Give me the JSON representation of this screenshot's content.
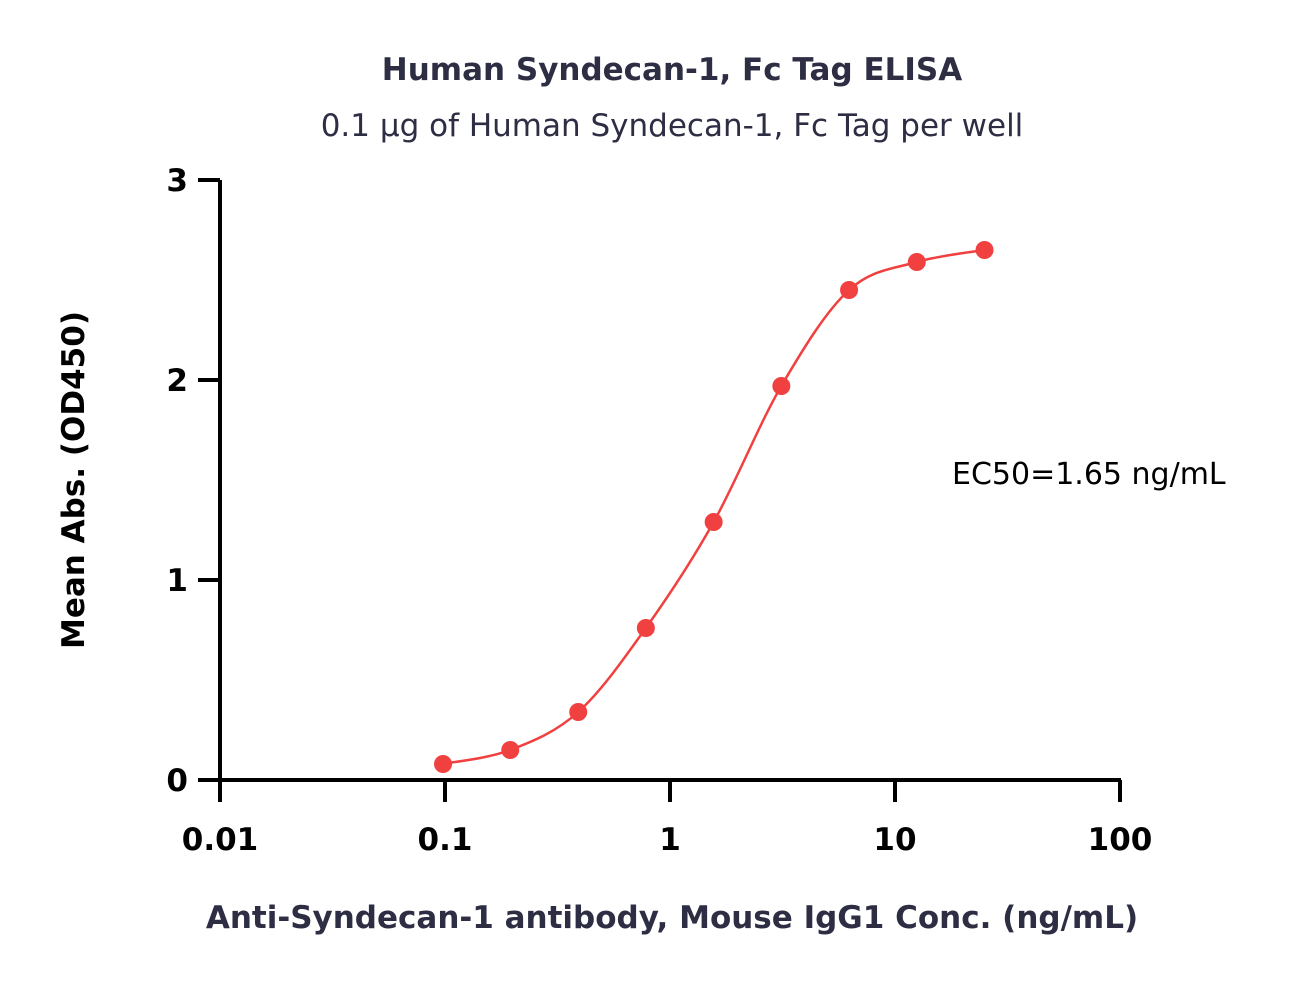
{
  "chart_data": {
    "type": "scatter",
    "title": "Human Syndecan-1, Fc Tag ELISA",
    "subtitle": "0.1 μg of Human Syndecan-1, Fc Tag per well",
    "xlabel": "Anti-Syndecan-1 antibody, Mouse IgG1 Conc. (ng/mL)",
    "ylabel": "Mean Abs. (OD450)",
    "x_scale": "log",
    "xlim": [
      0.01,
      100
    ],
    "ylim": [
      0,
      3
    ],
    "x_ticks": [
      0.01,
      0.1,
      1,
      10,
      100
    ],
    "x_tick_labels": [
      "0.01",
      "0.1",
      "1",
      "10",
      "100"
    ],
    "y_ticks": [
      0,
      1,
      2,
      3
    ],
    "y_tick_labels": [
      "0",
      "1",
      "2",
      "3"
    ],
    "grid": false,
    "annotation": "EC50=1.65 ng/mL",
    "color": "#f04040",
    "series": [
      {
        "x": [
          0.098,
          0.195,
          0.391,
          0.781,
          1.563,
          3.125,
          6.25,
          12.5,
          25
        ],
        "y": [
          0.08,
          0.15,
          0.34,
          0.76,
          1.29,
          1.97,
          2.45,
          2.59,
          2.65
        ]
      }
    ]
  }
}
